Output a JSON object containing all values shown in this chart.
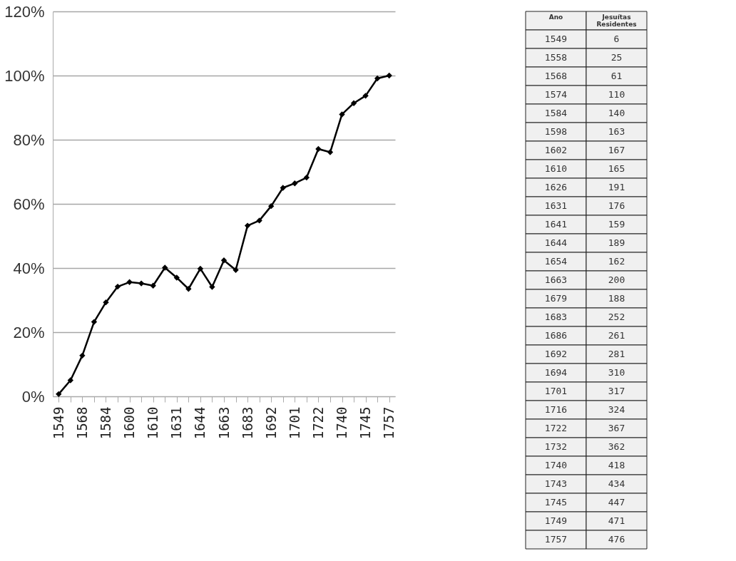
{
  "chart_data": [
    {
      "type": "line",
      "categories": [
        "1549",
        null,
        "1568",
        null,
        "1584",
        null,
        "1600",
        null,
        "1610",
        null,
        "1631",
        null,
        "1644",
        null,
        "1663",
        null,
        "1683",
        null,
        "1692",
        null,
        "1701",
        null,
        "1722",
        null,
        "1740",
        null,
        "1745",
        null,
        "1757"
      ],
      "series": [
        {
          "color": "#000000",
          "values": [
            0.7,
            5.0,
            12.7,
            23.2,
            29.3,
            34.2,
            35.6,
            35.2,
            34.5,
            40.1,
            37.0,
            33.5,
            39.8,
            34.1,
            42.4,
            39.4,
            53.2,
            54.8,
            59.3,
            65.0,
            66.4,
            68.2,
            77.1,
            76.1,
            87.9,
            91.4,
            93.7,
            99.1,
            100
          ]
        }
      ],
      "ylim": [
        0,
        120
      ],
      "yticks": [
        {
          "value": 0,
          "label": "0%"
        },
        {
          "value": 20,
          "label": "20%"
        },
        {
          "value": 40,
          "label": "40%"
        },
        {
          "value": 60,
          "label": "60%"
        },
        {
          "value": 80,
          "label": "80%"
        },
        {
          "value": 100,
          "label": "100%"
        },
        {
          "value": 120,
          "label": "120%"
        }
      ],
      "grid": "y",
      "marker": "diamond",
      "line_style": "solid"
    },
    {
      "type": "other",
      "xlabel": "Ano",
      "ylabel": "Jesuítas Residentes",
      "categories": [
        "1549",
        "1558",
        "1568",
        "1574",
        "1584",
        "1598",
        "1602",
        "1610",
        "1626",
        "1631",
        "1641",
        "1644",
        "1654",
        "1663",
        "1679",
        "1683",
        "1686",
        "1692",
        "1694",
        "1701",
        "1716",
        "1722",
        "1732",
        "1740",
        "1743",
        "1745",
        "1749",
        "1757"
      ],
      "values": [
        6,
        25,
        61,
        110,
        140,
        163,
        167,
        165,
        191,
        176,
        159,
        189,
        162,
        200,
        188,
        252,
        261,
        281,
        310,
        317,
        324,
        367,
        362,
        418,
        434,
        447,
        471,
        476
      ],
      "data_labels": true
    }
  ]
}
